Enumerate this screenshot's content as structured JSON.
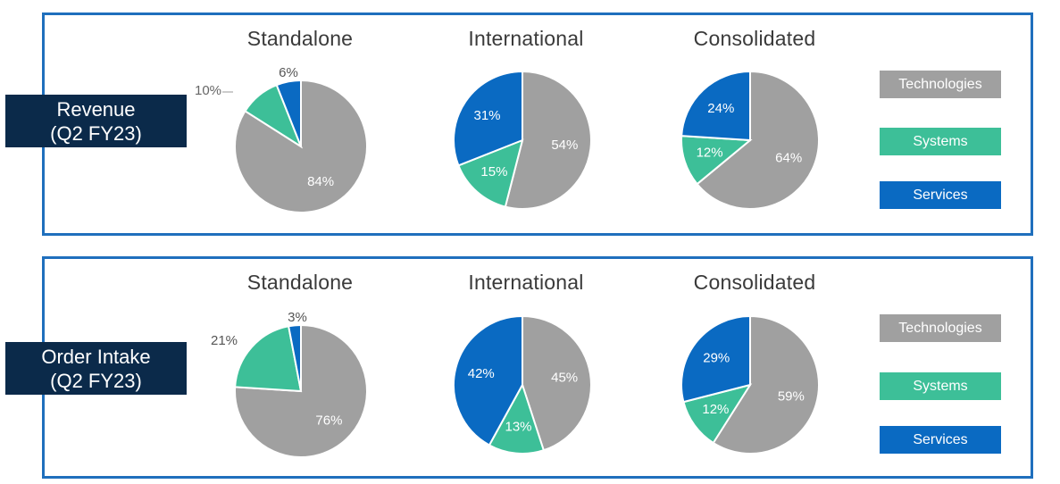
{
  "colors": {
    "technologies": "#a0a0a0",
    "systems": "#3dbf98",
    "services": "#0a6ac2"
  },
  "rows": [
    {
      "label_line1": "Revenue",
      "label_line2": "(Q2 FY23)",
      "charts": [
        {
          "title": "Standalone",
          "labels": [
            "84%",
            "10%",
            "6%"
          ]
        },
        {
          "title": "International",
          "labels": [
            "54%",
            "15%",
            "31%"
          ]
        },
        {
          "title": "Consolidated",
          "labels": [
            "64%",
            "12%",
            "24%"
          ]
        }
      ]
    },
    {
      "label_line1": "Order Intake",
      "label_line2": "(Q2 FY23)",
      "charts": [
        {
          "title": "Standalone",
          "labels": [
            "76%",
            "21%",
            "3%"
          ]
        },
        {
          "title": "International",
          "labels": [
            "45%",
            "13%",
            "42%"
          ]
        },
        {
          "title": "Consolidated",
          "labels": [
            "59%",
            "12%",
            "29%"
          ]
        }
      ]
    }
  ],
  "legend": [
    "Technologies",
    "Systems",
    "Services"
  ],
  "chart_data": [
    {
      "type": "pie",
      "title": "Standalone",
      "categories": [
        "Technologies",
        "Systems",
        "Services"
      ],
      "values": [
        84,
        10,
        6
      ]
    },
    {
      "type": "pie",
      "title": "International",
      "categories": [
        "Technologies",
        "Systems",
        "Services"
      ],
      "values": [
        54,
        15,
        31
      ]
    },
    {
      "type": "pie",
      "title": "Consolidated",
      "categories": [
        "Technologies",
        "Systems",
        "Services"
      ],
      "values": [
        64,
        12,
        24
      ]
    },
    {
      "type": "pie",
      "title": "Standalone",
      "categories": [
        "Technologies",
        "Systems",
        "Services"
      ],
      "values": [
        76,
        21,
        3
      ]
    },
    {
      "type": "pie",
      "title": "International",
      "categories": [
        "Technologies",
        "Systems",
        "Services"
      ],
      "values": [
        45,
        13,
        42
      ]
    },
    {
      "type": "pie",
      "title": "Consolidated",
      "categories": [
        "Technologies",
        "Systems",
        "Services"
      ],
      "values": [
        59,
        12,
        29
      ]
    }
  ]
}
